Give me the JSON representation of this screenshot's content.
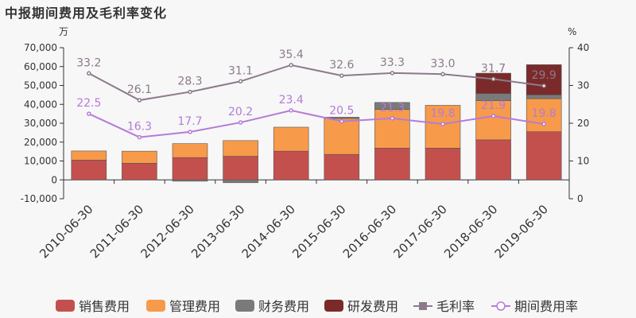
{
  "chart_data": {
    "type": "bar",
    "title": "中报期间费用及毛利率变化",
    "y_left_unit": "万",
    "y_right_unit": "%",
    "ylim_left": [
      -10000,
      70000
    ],
    "ylim_right": [
      0,
      40
    ],
    "y_left_ticks": [
      "-10,000",
      "0",
      "10,000",
      "20,000",
      "30,000",
      "40,000",
      "50,000",
      "60,000",
      "70,000"
    ],
    "y_right_ticks": [
      "0",
      "10",
      "20",
      "30",
      "40"
    ],
    "categories": [
      "2010-06-30",
      "2011-06-30",
      "2012-06-30",
      "2013-06-30",
      "2014-06-30",
      "2015-06-30",
      "2016-06-30",
      "2017-06-30",
      "2018-06-30",
      "2019-06-30"
    ],
    "grid": false,
    "legend_position": "bottom",
    "series": [
      {
        "name": "销售费用",
        "kind": "bar",
        "color": "#c4504e",
        "values": [
          10500,
          8800,
          11800,
          12500,
          15200,
          13500,
          16800,
          16800,
          21200,
          25500
        ]
      },
      {
        "name": "管理费用",
        "kind": "bar",
        "color": "#f79a4a",
        "values": [
          4800,
          6400,
          7400,
          8300,
          12700,
          19000,
          20500,
          22700,
          20800,
          17500
        ]
      },
      {
        "name": "财务费用",
        "kind": "bar",
        "color": "#7a7a7a",
        "values": [
          0,
          0,
          -700,
          -1500,
          0,
          700,
          3700,
          0,
          3700,
          2000
        ]
      },
      {
        "name": "研发费用",
        "kind": "bar",
        "color": "#7b2a2a",
        "values": [
          0,
          0,
          0,
          0,
          0,
          0,
          0,
          0,
          10800,
          16000
        ]
      },
      {
        "name": "毛利率",
        "kind": "line",
        "axis": "right",
        "color": "#8c7a8c",
        "values": [
          33.2,
          26.1,
          28.3,
          31.1,
          35.4,
          32.6,
          33.3,
          33.0,
          31.7,
          29.9
        ]
      },
      {
        "name": "期间费用率",
        "kind": "line",
        "axis": "right",
        "color": "#b57bd8",
        "values": [
          22.5,
          16.3,
          17.7,
          20.2,
          23.4,
          20.5,
          21.3,
          19.8,
          21.9,
          19.8
        ]
      }
    ]
  }
}
